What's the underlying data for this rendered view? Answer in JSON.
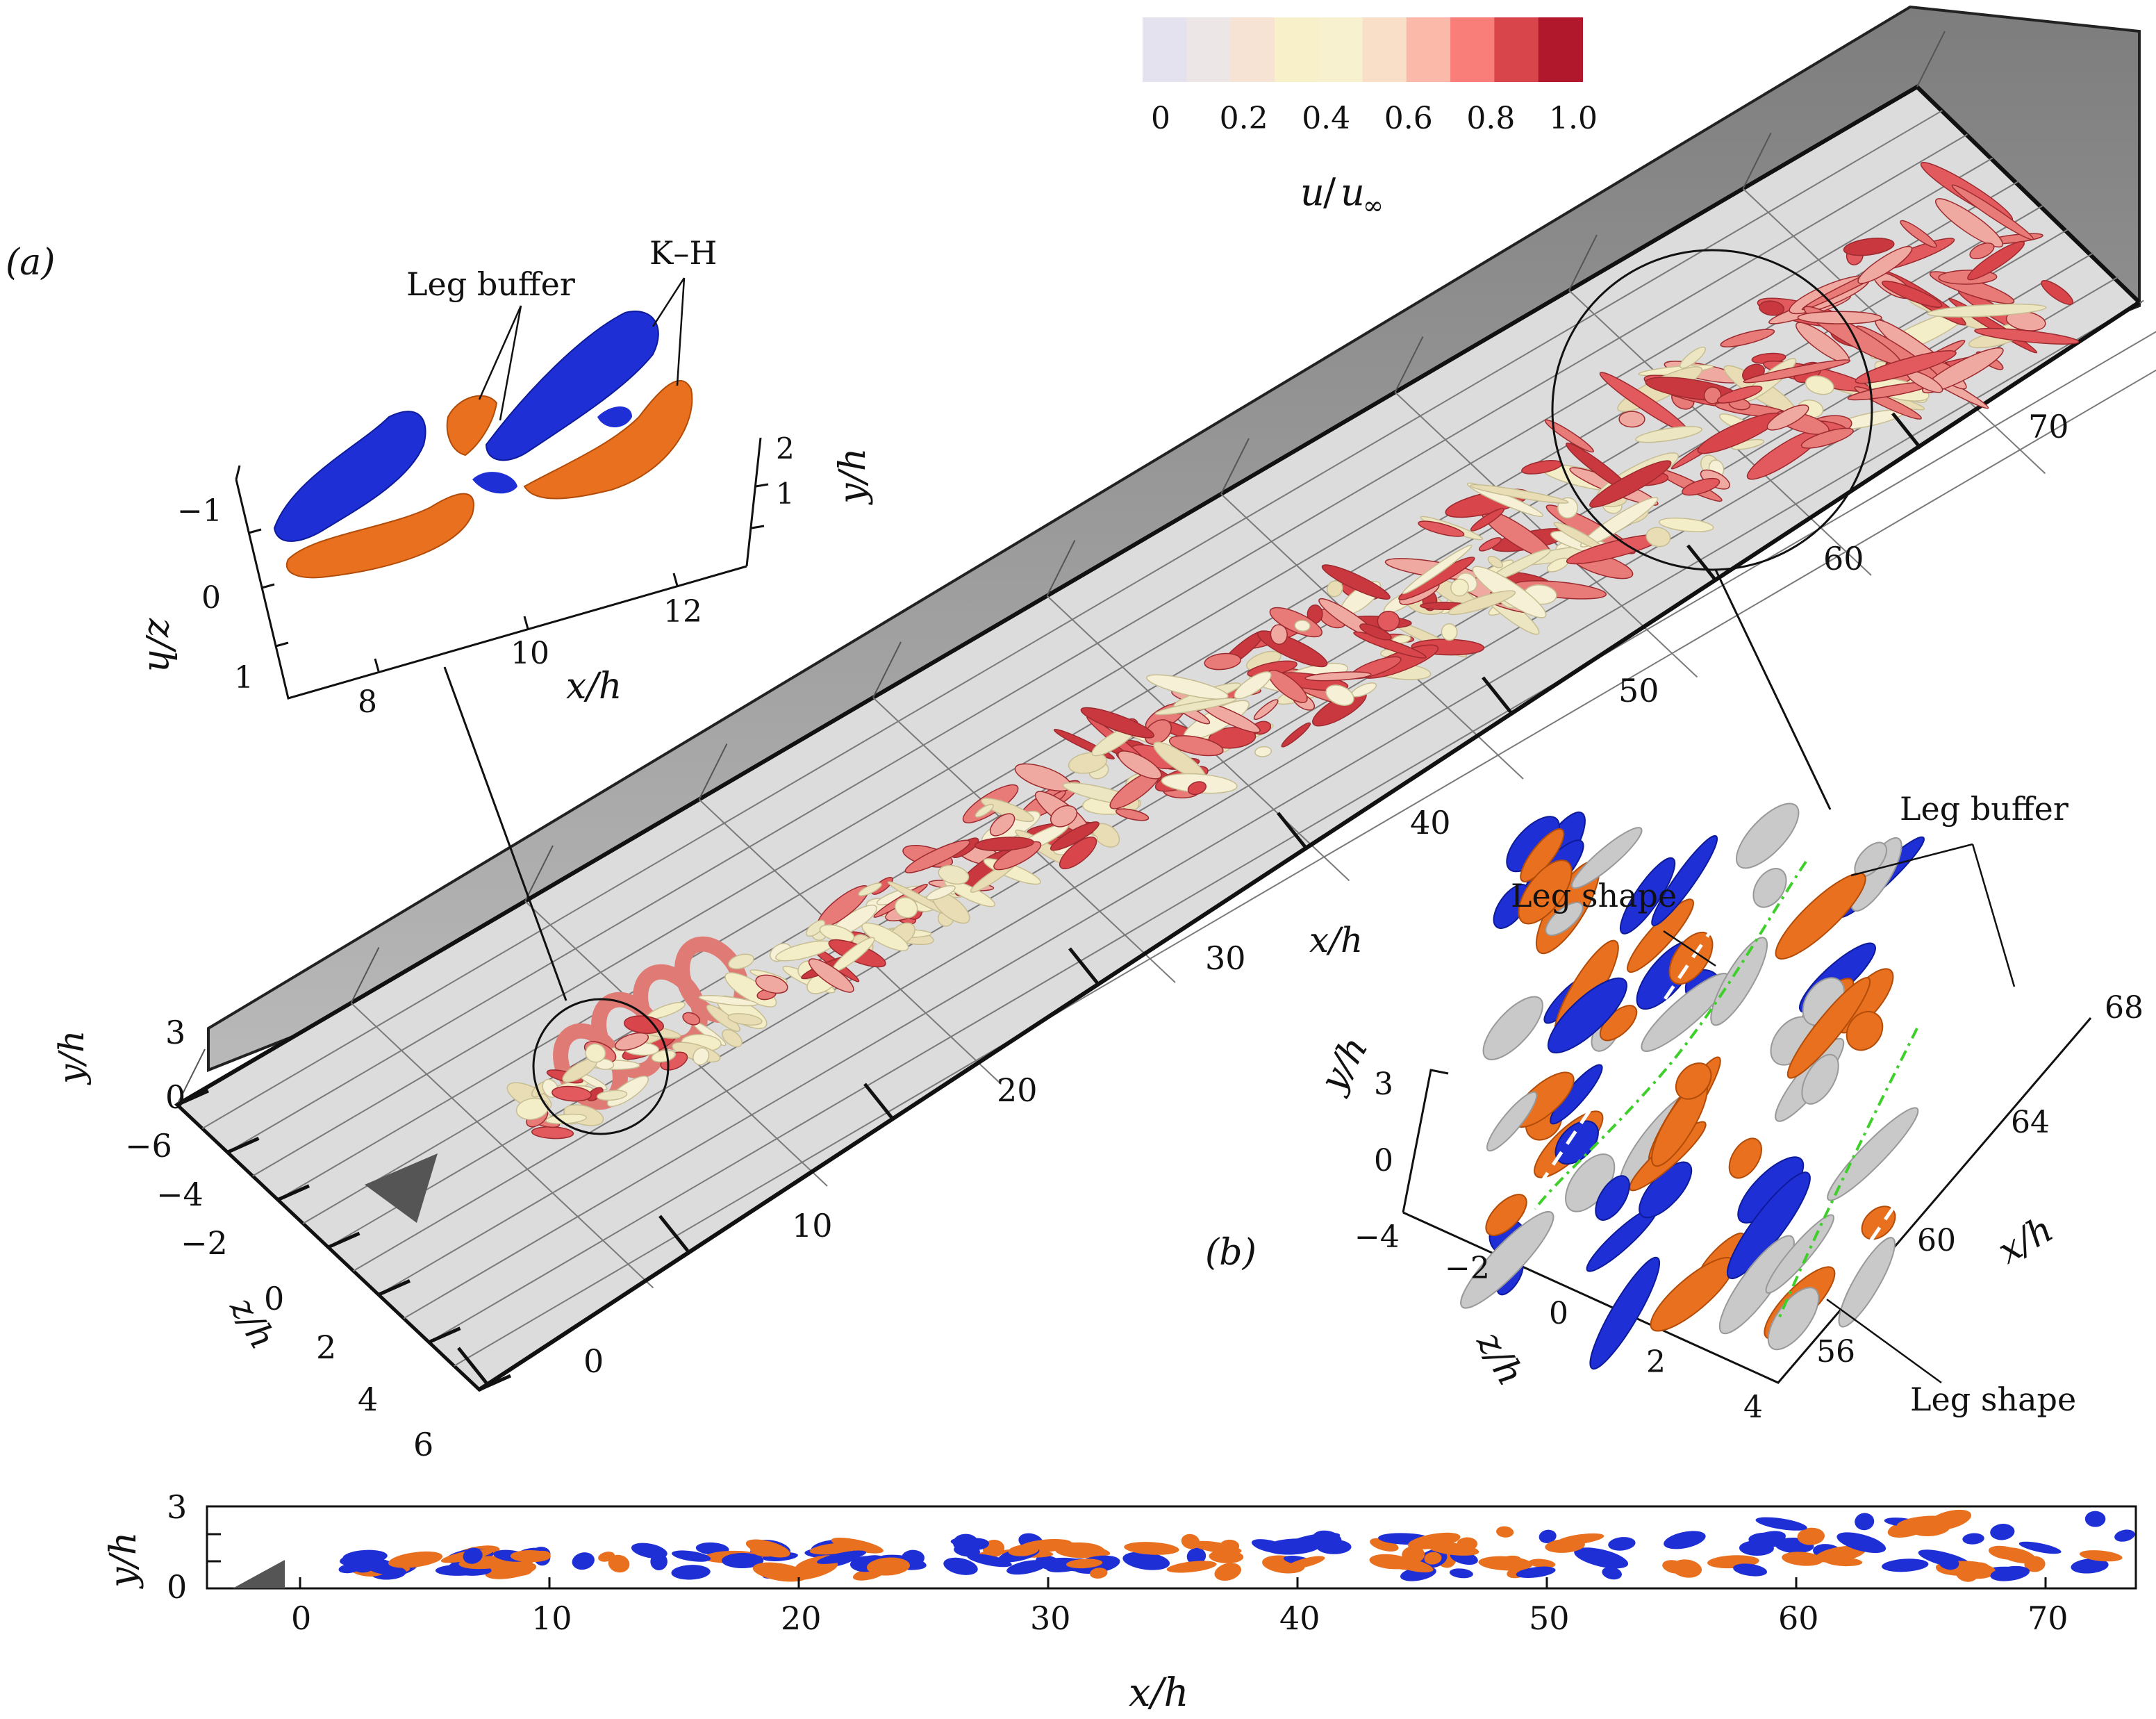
{
  "colorbar": {
    "ticks": [
      "0",
      "0.2",
      "0.4",
      "0.6",
      "0.8",
      "1.0"
    ],
    "label_num": "u",
    "label_den": "u",
    "label_sub": "∞",
    "colors": [
      "#e4e2ef",
      "#ece6e6",
      "#f6e3d3",
      "#f8f0c9",
      "#f7f1cf",
      "#f9dec8",
      "#fbb9a9",
      "#f97e79",
      "#d8454b",
      "#b2182b"
    ]
  },
  "main_panel": {
    "x_ticks": [
      "0",
      "10",
      "20",
      "30",
      "40",
      "50",
      "60",
      "70"
    ],
    "x_label": "x/h",
    "z_ticks": [
      "−6",
      "−4",
      "−2",
      "0",
      "2",
      "4",
      "6"
    ],
    "z_label": "z/h",
    "y_ticks": [
      "3",
      "0"
    ],
    "y_label": "y/h"
  },
  "inset_a": {
    "panel_label": "(a)",
    "annotations": [
      "Leg buffer",
      "K–H"
    ],
    "x_ticks": [
      "8",
      "10",
      "12"
    ],
    "x_label": "x/h",
    "z_ticks": [
      "−1",
      "0",
      "1"
    ],
    "z_label": "z/h",
    "y_ticks": [
      "2",
      "1"
    ],
    "y_label": "y/h"
  },
  "inset_b": {
    "panel_label": "(b)",
    "annotations": [
      "Leg buffer",
      "Leg shape",
      "Leg shape"
    ],
    "x_ticks": [
      "68",
      "64",
      "60",
      "56"
    ],
    "x_label": "x/h",
    "z_ticks": [
      "−4",
      "−2",
      "0",
      "2",
      "4"
    ],
    "z_label": "z/h",
    "y_ticks": [
      "3",
      "0"
    ],
    "y_label": "y/h"
  },
  "bottom_panel": {
    "x_ticks": [
      "0",
      "10",
      "20",
      "30",
      "40",
      "50",
      "60",
      "70"
    ],
    "x_label": "x/h",
    "y_ticks": [
      "3",
      "0"
    ],
    "y_label": "y/h"
  },
  "colors": {
    "positive_structure": "#e8701f",
    "negative_structure": "#1f2fd6",
    "vortex_red": "#d8454b",
    "vortex_cream": "#f3edc8",
    "floor": "#dcdcdc",
    "wall": "#9a9a9a"
  }
}
